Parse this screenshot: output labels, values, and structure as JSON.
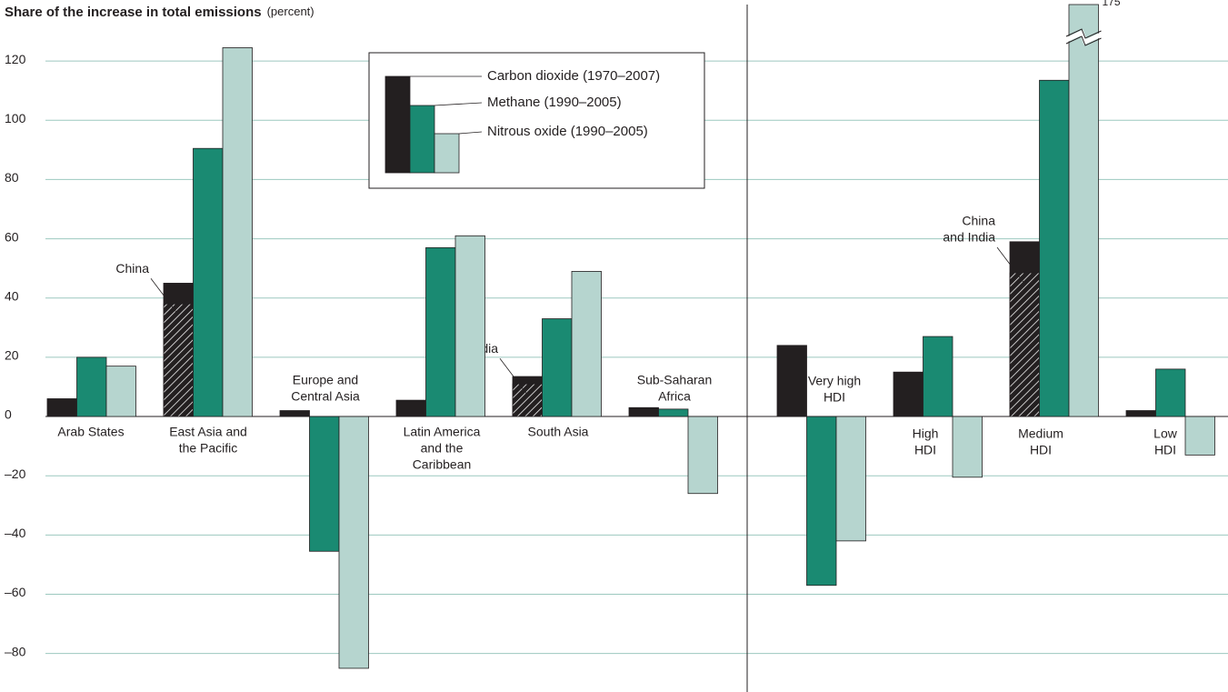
{
  "chart_data": {
    "type": "bar",
    "title": "Share of the increase in total emissions",
    "subtitle": "(percent)",
    "categories": [
      [
        "Arab States"
      ],
      [
        "East Asia and",
        "the Pacific"
      ],
      [
        "Europe and",
        "Central Asia"
      ],
      [
        "Latin America",
        "and the",
        "Caribbean"
      ],
      [
        "South Asia"
      ],
      [
        "Sub-Saharan",
        "Africa"
      ],
      [
        "Very high",
        "HDI"
      ],
      [
        "High",
        "HDI"
      ],
      [
        "Medium",
        "HDI"
      ],
      [
        "Low",
        "HDI"
      ]
    ],
    "series": [
      {
        "name": "Carbon dioxide (1970–2007)",
        "color": "#231f20",
        "values": [
          6,
          45,
          2,
          5.5,
          13.5,
          3,
          24,
          15,
          59,
          2
        ],
        "sub_values": [
          null,
          38,
          null,
          null,
          11,
          null,
          null,
          null,
          48.5,
          null
        ],
        "sub_labels": [
          null,
          [
            "China"
          ],
          null,
          null,
          [
            "India"
          ],
          null,
          null,
          null,
          [
            "China",
            "and India"
          ],
          null
        ]
      },
      {
        "name": "Methane (1990–2005)",
        "color": "#1a8a72",
        "values": [
          20,
          90.5,
          -45.5,
          57,
          33,
          2.5,
          -57,
          27,
          113.5,
          16
        ]
      },
      {
        "name": "Nitrous oxide (1990–2005)",
        "color": "#b6d5cf",
        "values": [
          17,
          124.5,
          -85,
          61,
          49,
          -26,
          -42,
          -20.5,
          175,
          -13
        ],
        "value_labels": [
          null,
          null,
          null,
          null,
          null,
          null,
          null,
          null,
          "175",
          null
        ]
      }
    ],
    "ylim": [
      -93,
      140.6
    ],
    "yticks": [
      {
        "value": -80,
        "label": "–80"
      },
      {
        "value": -60,
        "label": "–60"
      },
      {
        "value": -40,
        "label": "–40"
      },
      {
        "value": -20,
        "label": "–20"
      },
      0,
      20,
      40,
      60,
      80,
      100,
      120
    ],
    "grid": true
  }
}
